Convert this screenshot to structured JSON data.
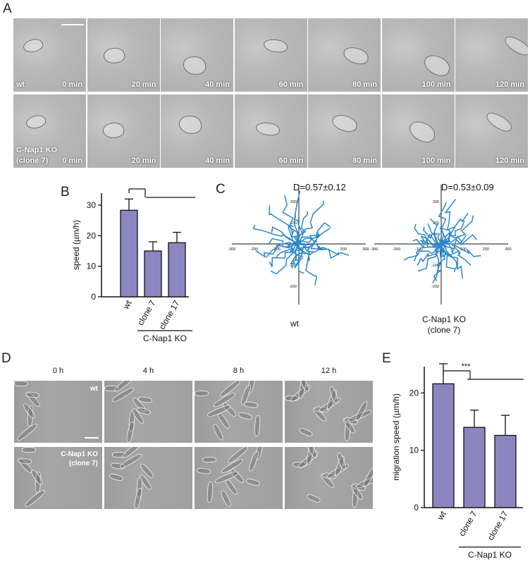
{
  "panels": {
    "a": "A",
    "b": "B",
    "c": "C",
    "d": "D",
    "e": "E"
  },
  "panel_a": {
    "time_labels": [
      "0 min",
      "20 min",
      "40 min",
      "60 min",
      "80 min",
      "100 min",
      "120 min"
    ],
    "row1_label": "wt",
    "row2_label_line1": "C-Nap1 KO",
    "row2_label_line2": "(clone 7)"
  },
  "panel_c": {
    "wt_d": "D=0.57±0.12",
    "ko_d": "D=0.53±0.09",
    "wt_label": "wt",
    "ko_label_line1": "C-Nap1 KO",
    "ko_label_line2": "(clone 7)",
    "tick_labels_x": [
      "-300",
      "-200",
      "-100",
      "0",
      "100",
      "200",
      "300"
    ],
    "tick_labels_y": [
      "300",
      "200",
      "100",
      "0",
      "-100",
      "-200",
      "-300"
    ],
    "track_color": "#2b86c8"
  },
  "panel_d": {
    "time_labels": [
      "0 h",
      "4 h",
      "8 h",
      "12 h"
    ],
    "row1_label": "wt",
    "row2_label_line1": "C-Nap1 KO",
    "row2_label_line2": "(clone 7)"
  },
  "chart_data": [
    {
      "type": "bar",
      "panel": "B",
      "categories": [
        "wt",
        "clone 7",
        "clone 17"
      ],
      "values": [
        28.3,
        15.0,
        17.7
      ],
      "errors": [
        3.7,
        3.0,
        3.4
      ],
      "ylabel": "speed (µm/h)",
      "ylim": [
        0,
        30
      ],
      "yticks": [
        "0",
        "10",
        "20",
        "30"
      ],
      "group_label": "C-Nap1 KO",
      "significance": "***",
      "bar_color": "#8b86c0"
    },
    {
      "type": "bar",
      "panel": "E",
      "categories": [
        "wt",
        "clone 7",
        "clone 17"
      ],
      "values": [
        21.6,
        14.0,
        12.6
      ],
      "errors": [
        3.5,
        3.0,
        3.5
      ],
      "ylabel": "migration speed (µm/h)",
      "ylim": [
        0,
        20
      ],
      "yticks": [
        "0",
        "10",
        "20"
      ],
      "group_label": "C-Nap1 KO",
      "significance": "***",
      "bar_color": "#8b86c0"
    }
  ]
}
